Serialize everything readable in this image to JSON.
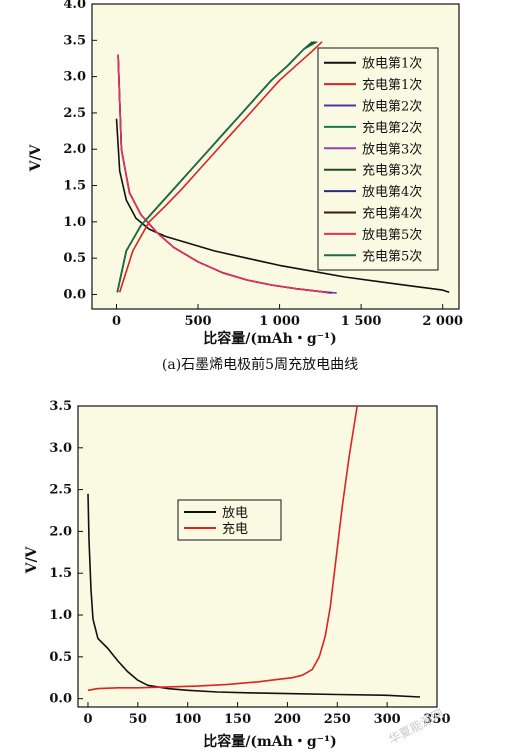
{
  "chart_data": [
    {
      "type": "line",
      "caption": "(a)石墨烯电极前5周充放电曲线",
      "xlabel": "比容量/(mAh・g⁻¹)",
      "ylabel": "V/V",
      "xlim": [
        -150,
        2100
      ],
      "ylim": [
        -0.2,
        4.0
      ],
      "xticks": [
        "0",
        "500",
        "1 000",
        "1 500",
        "2 000"
      ],
      "yticks": [
        "0.0",
        "0.5",
        "1.0",
        "1.5",
        "2.0",
        "2.5",
        "3.0",
        "3.5",
        "4.0"
      ],
      "legend_position": "right",
      "series": [
        {
          "name": "放电第1次",
          "color": "#111111",
          "x": [
            0,
            20,
            60,
            120,
            200,
            300,
            450,
            600,
            800,
            1000,
            1200,
            1400,
            1600,
            1800,
            2000,
            2040
          ],
          "y": [
            2.42,
            1.7,
            1.3,
            1.05,
            0.9,
            0.8,
            0.7,
            0.6,
            0.5,
            0.4,
            0.32,
            0.24,
            0.18,
            0.12,
            0.06,
            0.03
          ]
        },
        {
          "name": "充电第1次",
          "color": "#e02020",
          "x": [
            20,
            100,
            200,
            300,
            400,
            500,
            600,
            700,
            800,
            900,
            1000,
            1100,
            1200,
            1260
          ],
          "y": [
            0.03,
            0.6,
            1.0,
            1.22,
            1.45,
            1.7,
            1.95,
            2.2,
            2.45,
            2.7,
            2.95,
            3.15,
            3.35,
            3.48
          ]
        },
        {
          "name": "放电第2次",
          "color": "#4a35b0",
          "x": [
            10,
            30,
            80,
            150,
            250,
            350,
            500,
            650,
            800,
            950,
            1100,
            1250,
            1350
          ],
          "y": [
            3.3,
            2.0,
            1.4,
            1.1,
            0.85,
            0.65,
            0.45,
            0.3,
            0.2,
            0.13,
            0.08,
            0.04,
            0.02
          ]
        },
        {
          "name": "充电第2次",
          "color": "#1a7a50",
          "x": [
            5,
            60,
            150,
            250,
            350,
            450,
            550,
            650,
            750,
            850,
            950,
            1050,
            1150,
            1200
          ],
          "y": [
            0.03,
            0.6,
            0.95,
            1.2,
            1.45,
            1.7,
            1.95,
            2.2,
            2.45,
            2.7,
            2.95,
            3.15,
            3.38,
            3.48
          ]
        },
        {
          "name": "放电第3次",
          "color": "#9b3fb0",
          "x": [
            10,
            30,
            80,
            150,
            250,
            350,
            500,
            650,
            800,
            950,
            1100,
            1250,
            1330
          ],
          "y": [
            3.3,
            2.0,
            1.4,
            1.1,
            0.85,
            0.65,
            0.45,
            0.3,
            0.2,
            0.13,
            0.08,
            0.04,
            0.02
          ]
        },
        {
          "name": "充电第3次",
          "color": "#1f4a2a",
          "x": [
            5,
            60,
            150,
            250,
            350,
            450,
            550,
            650,
            750,
            850,
            950,
            1050,
            1150,
            1210
          ],
          "y": [
            0.03,
            0.6,
            0.95,
            1.2,
            1.45,
            1.7,
            1.95,
            2.2,
            2.45,
            2.7,
            2.95,
            3.15,
            3.38,
            3.48
          ]
        },
        {
          "name": "放电第4次",
          "color": "#2a2a8a",
          "x": [
            10,
            30,
            80,
            150,
            250,
            350,
            500,
            650,
            800,
            950,
            1100,
            1250,
            1320
          ],
          "y": [
            3.3,
            2.0,
            1.4,
            1.1,
            0.85,
            0.65,
            0.45,
            0.3,
            0.2,
            0.13,
            0.08,
            0.04,
            0.02
          ]
        },
        {
          "name": "充电第4次",
          "color": "#3a1a10",
          "x": [
            5,
            60,
            150,
            250,
            350,
            450,
            550,
            650,
            750,
            850,
            950,
            1050,
            1150,
            1220
          ],
          "y": [
            0.03,
            0.6,
            0.95,
            1.2,
            1.45,
            1.7,
            1.95,
            2.2,
            2.45,
            2.7,
            2.95,
            3.15,
            3.38,
            3.48
          ]
        },
        {
          "name": "放电第5次",
          "color": "#e83050",
          "x": [
            10,
            30,
            80,
            150,
            250,
            350,
            500,
            650,
            800,
            950,
            1100,
            1250,
            1300
          ],
          "y": [
            3.3,
            2.0,
            1.4,
            1.1,
            0.85,
            0.65,
            0.45,
            0.3,
            0.2,
            0.13,
            0.08,
            0.04,
            0.02
          ]
        },
        {
          "name": "充电第5次",
          "color": "#1e6e48",
          "x": [
            5,
            60,
            150,
            250,
            350,
            450,
            550,
            650,
            750,
            850,
            950,
            1050,
            1150,
            1230
          ],
          "y": [
            0.03,
            0.6,
            0.95,
            1.2,
            1.45,
            1.7,
            1.95,
            2.2,
            2.45,
            2.7,
            2.95,
            3.15,
            3.38,
            3.48
          ]
        }
      ]
    },
    {
      "type": "line",
      "xlabel": "比容量/(mAh・g⁻¹)",
      "ylabel": "V/V",
      "xlim": [
        -10,
        350
      ],
      "ylim": [
        -0.1,
        3.5
      ],
      "xticks": [
        "0",
        "50",
        "100",
        "150",
        "200",
        "250",
        "300",
        "350"
      ],
      "yticks": [
        "0.0",
        "0.5",
        "1.0",
        "1.5",
        "2.0",
        "2.5",
        "3.0",
        "3.5"
      ],
      "legend_position": "center-left",
      "series": [
        {
          "name": "放电",
          "color": "#111111",
          "x": [
            0,
            1,
            3,
            5,
            10,
            20,
            30,
            40,
            50,
            60,
            80,
            100,
            130,
            160,
            200,
            250,
            300,
            333
          ],
          "y": [
            2.45,
            1.9,
            1.3,
            0.95,
            0.72,
            0.6,
            0.45,
            0.32,
            0.22,
            0.16,
            0.12,
            0.1,
            0.08,
            0.07,
            0.06,
            0.05,
            0.04,
            0.02
          ]
        },
        {
          "name": "充电",
          "color": "#dd2222",
          "x": [
            0,
            10,
            30,
            50,
            80,
            110,
            140,
            170,
            190,
            205,
            215,
            225,
            232,
            238,
            243,
            248,
            255,
            262,
            270
          ],
          "y": [
            0.1,
            0.12,
            0.13,
            0.13,
            0.14,
            0.15,
            0.17,
            0.2,
            0.23,
            0.25,
            0.28,
            0.35,
            0.5,
            0.75,
            1.1,
            1.6,
            2.3,
            2.9,
            3.5
          ]
        }
      ]
    }
  ],
  "watermark": "华夏能源网"
}
